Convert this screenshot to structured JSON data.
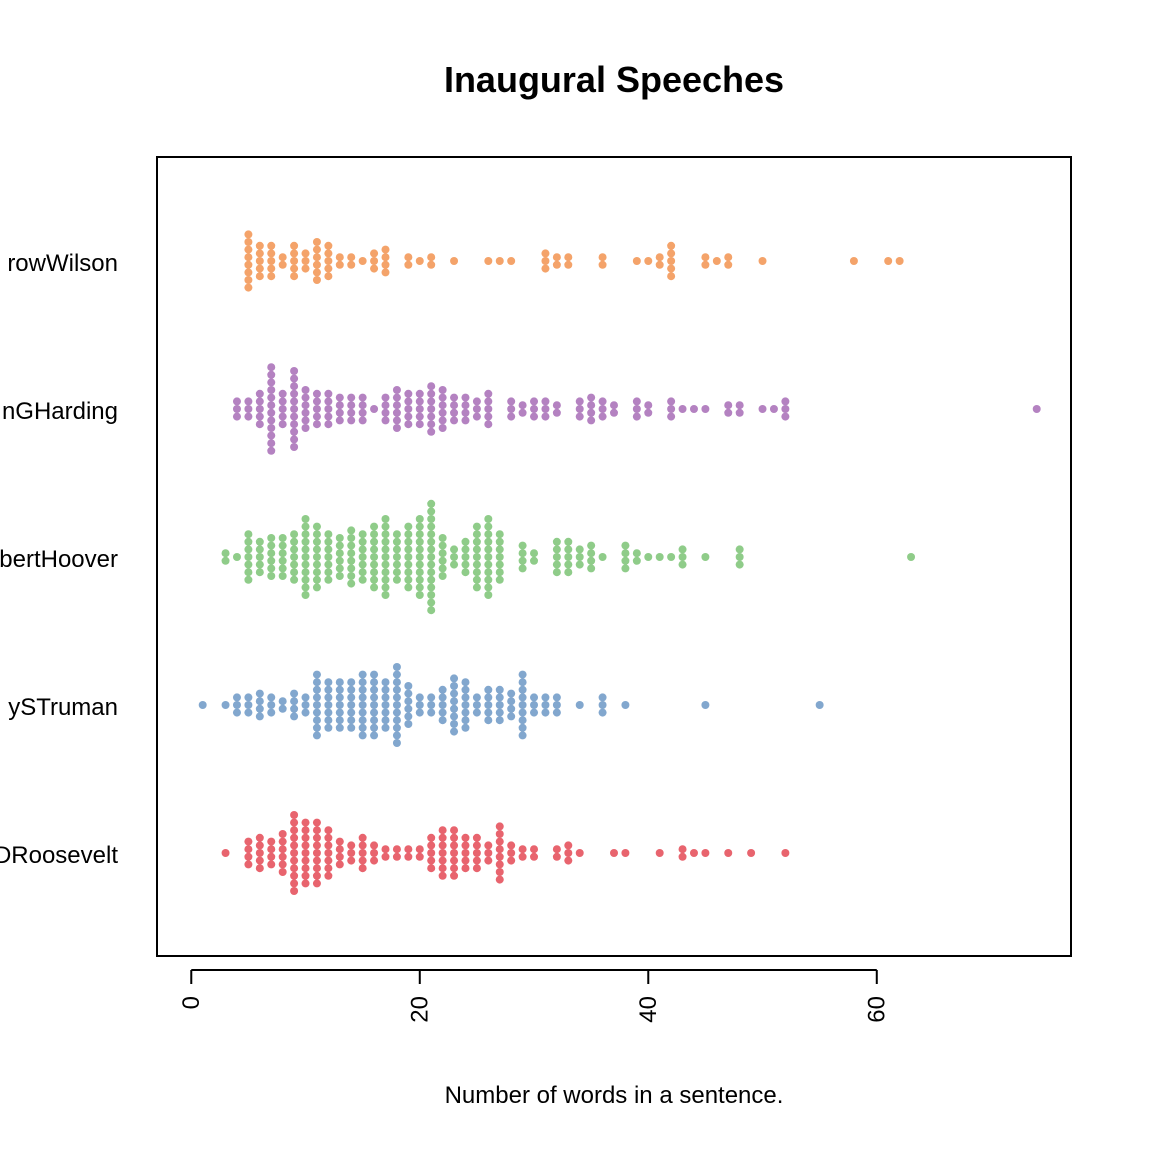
{
  "chart_data": {
    "type": "scatter",
    "subtype": "beeswarm",
    "title": "Inaugural Speeches",
    "xlabel": "Number of words in a sentence.",
    "ylabel": "",
    "xlim": [
      -3,
      77
    ],
    "xticks": [
      0,
      20,
      40,
      60
    ],
    "grid": false,
    "legend": "none",
    "series": [
      {
        "name": "WoodrowWilson",
        "display_label": "rowWilson",
        "color": "#F4A36A",
        "values": [
          5,
          5,
          5,
          5,
          5,
          5,
          5,
          5,
          6,
          6,
          6,
          6,
          6,
          7,
          7,
          7,
          7,
          7,
          8,
          8,
          9,
          9,
          9,
          9,
          9,
          10,
          10,
          10,
          11,
          11,
          11,
          11,
          11,
          11,
          12,
          12,
          12,
          12,
          12,
          13,
          13,
          14,
          14,
          15,
          16,
          16,
          16,
          17,
          17,
          17,
          17,
          19,
          19,
          20,
          21,
          21,
          23,
          26,
          27,
          28,
          31,
          31,
          31,
          32,
          32,
          33,
          33,
          36,
          36,
          39,
          40,
          41,
          41,
          42,
          42,
          42,
          42,
          42,
          45,
          45,
          46,
          47,
          47,
          50,
          58,
          61,
          62
        ]
      },
      {
        "name": "WarrenGHarding",
        "display_label": "nGHarding",
        "color": "#B482C1",
        "values": [
          4,
          4,
          4,
          5,
          5,
          5,
          6,
          6,
          6,
          6,
          6,
          7,
          7,
          7,
          7,
          7,
          7,
          7,
          7,
          7,
          7,
          7,
          7,
          8,
          8,
          8,
          8,
          8,
          9,
          9,
          9,
          9,
          9,
          9,
          9,
          9,
          9,
          9,
          9,
          10,
          10,
          10,
          10,
          10,
          10,
          11,
          11,
          11,
          11,
          11,
          12,
          12,
          12,
          12,
          12,
          13,
          13,
          13,
          13,
          14,
          14,
          14,
          14,
          15,
          15,
          15,
          15,
          16,
          17,
          17,
          17,
          17,
          18,
          18,
          18,
          18,
          18,
          18,
          19,
          19,
          19,
          19,
          19,
          20,
          20,
          20,
          20,
          20,
          21,
          21,
          21,
          21,
          21,
          21,
          21,
          22,
          22,
          22,
          22,
          22,
          22,
          23,
          23,
          23,
          23,
          24,
          24,
          24,
          24,
          25,
          25,
          25,
          26,
          26,
          26,
          26,
          26,
          28,
          28,
          28,
          29,
          29,
          30,
          30,
          30,
          31,
          31,
          31,
          32,
          32,
          34,
          34,
          34,
          35,
          35,
          35,
          35,
          36,
          36,
          36,
          37,
          37,
          39,
          39,
          39,
          40,
          40,
          42,
          42,
          42,
          43,
          44,
          45,
          47,
          47,
          48,
          48,
          50,
          51,
          52,
          52,
          52,
          74
        ]
      },
      {
        "name": "HerbertHoover",
        "display_label": "bertHoover",
        "color": "#8FCC89",
        "values": [
          3,
          3,
          4,
          5,
          5,
          5,
          5,
          5,
          5,
          5,
          6,
          6,
          6,
          6,
          6,
          7,
          7,
          7,
          7,
          7,
          7,
          8,
          8,
          8,
          8,
          8,
          8,
          9,
          9,
          9,
          9,
          9,
          9,
          9,
          10,
          10,
          10,
          10,
          10,
          10,
          10,
          10,
          10,
          10,
          10,
          11,
          11,
          11,
          11,
          11,
          11,
          11,
          11,
          11,
          12,
          12,
          12,
          12,
          12,
          12,
          12,
          13,
          13,
          13,
          13,
          13,
          13,
          14,
          14,
          14,
          14,
          14,
          14,
          14,
          14,
          15,
          15,
          15,
          15,
          15,
          15,
          15,
          16,
          16,
          16,
          16,
          16,
          16,
          16,
          16,
          16,
          17,
          17,
          17,
          17,
          17,
          17,
          17,
          17,
          17,
          17,
          17,
          18,
          18,
          18,
          18,
          18,
          18,
          18,
          19,
          19,
          19,
          19,
          19,
          19,
          19,
          19,
          19,
          20,
          20,
          20,
          20,
          20,
          20,
          20,
          20,
          20,
          20,
          20,
          21,
          21,
          21,
          21,
          21,
          21,
          21,
          21,
          21,
          21,
          21,
          21,
          21,
          21,
          21,
          22,
          22,
          22,
          22,
          22,
          22,
          23,
          23,
          23,
          24,
          24,
          24,
          24,
          24,
          25,
          25,
          25,
          25,
          25,
          25,
          25,
          25,
          25,
          26,
          26,
          26,
          26,
          26,
          26,
          26,
          26,
          26,
          26,
          26,
          27,
          27,
          27,
          27,
          27,
          27,
          27,
          29,
          29,
          29,
          29,
          30,
          30,
          32,
          32,
          32,
          32,
          32,
          33,
          33,
          33,
          33,
          33,
          34,
          34,
          34,
          35,
          35,
          35,
          35,
          36,
          38,
          38,
          38,
          38,
          39,
          39,
          40,
          41,
          42,
          43,
          43,
          43,
          45,
          48,
          48,
          48,
          63
        ]
      },
      {
        "name": "HarrySTruman",
        "display_label": "ySTruman",
        "color": "#82A7CE",
        "values": [
          1,
          3,
          4,
          4,
          4,
          5,
          5,
          5,
          6,
          6,
          6,
          6,
          7,
          7,
          7,
          8,
          8,
          9,
          9,
          9,
          9,
          10,
          10,
          10,
          11,
          11,
          11,
          11,
          11,
          11,
          11,
          11,
          11,
          12,
          12,
          12,
          12,
          12,
          12,
          12,
          13,
          13,
          13,
          13,
          13,
          13,
          13,
          14,
          14,
          14,
          14,
          14,
          14,
          14,
          15,
          15,
          15,
          15,
          15,
          15,
          15,
          15,
          15,
          16,
          16,
          16,
          16,
          16,
          16,
          16,
          16,
          16,
          17,
          17,
          17,
          17,
          17,
          17,
          17,
          18,
          18,
          18,
          18,
          18,
          18,
          18,
          18,
          18,
          18,
          18,
          19,
          19,
          19,
          19,
          19,
          19,
          20,
          20,
          20,
          21,
          21,
          21,
          22,
          22,
          22,
          22,
          22,
          23,
          23,
          23,
          23,
          23,
          23,
          23,
          23,
          24,
          24,
          24,
          24,
          24,
          24,
          24,
          25,
          25,
          25,
          26,
          26,
          26,
          26,
          26,
          27,
          27,
          27,
          27,
          27,
          28,
          28,
          28,
          28,
          29,
          29,
          29,
          29,
          29,
          29,
          29,
          29,
          29,
          30,
          30,
          30,
          31,
          31,
          31,
          32,
          32,
          32,
          34,
          36,
          36,
          36,
          38,
          45,
          55
        ]
      },
      {
        "name": "FranklinDRoosevelt",
        "display_label": "DRoosevelt",
        "color": "#E8646E",
        "values": [
          3,
          5,
          5,
          5,
          5,
          6,
          6,
          6,
          6,
          6,
          7,
          7,
          7,
          7,
          8,
          8,
          8,
          8,
          8,
          8,
          9,
          9,
          9,
          9,
          9,
          9,
          9,
          9,
          9,
          9,
          9,
          10,
          10,
          10,
          10,
          10,
          10,
          10,
          10,
          10,
          11,
          11,
          11,
          11,
          11,
          11,
          11,
          11,
          11,
          12,
          12,
          12,
          12,
          12,
          12,
          12,
          13,
          13,
          13,
          13,
          14,
          14,
          14,
          15,
          15,
          15,
          15,
          15,
          16,
          16,
          16,
          17,
          17,
          18,
          18,
          19,
          19,
          20,
          20,
          21,
          21,
          21,
          21,
          21,
          22,
          22,
          22,
          22,
          22,
          22,
          22,
          23,
          23,
          23,
          23,
          23,
          23,
          23,
          24,
          24,
          24,
          24,
          24,
          25,
          25,
          25,
          25,
          25,
          26,
          26,
          26,
          27,
          27,
          27,
          27,
          27,
          27,
          27,
          27,
          28,
          28,
          28,
          29,
          29,
          30,
          30,
          32,
          32,
          33,
          33,
          33,
          34,
          37,
          38,
          41,
          43,
          43,
          44,
          45,
          47,
          49,
          52
        ]
      }
    ]
  }
}
